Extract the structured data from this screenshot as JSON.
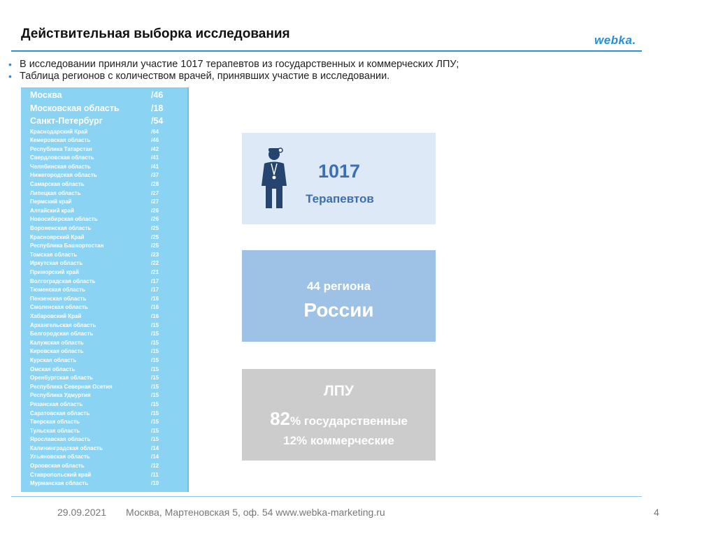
{
  "slide": {
    "title": "Действительная выборка исследования",
    "logo_text": "webka."
  },
  "bullets": [
    "В исследовании приняли участие 1017 терапевтов из государственных и коммерческих ЛПУ;",
    "Таблица регионов с количеством врачей, принявших участие в исследовании."
  ],
  "regions_big": [
    {
      "name": "Москва",
      "count": "/46"
    },
    {
      "name": "Московская область",
      "count": "/18"
    },
    {
      "name": "Санкт-Петербург",
      "count": "/54"
    }
  ],
  "regions_small": [
    {
      "name": "Краснодарский Край",
      "count": "/64"
    },
    {
      "name": "Кемеровская область",
      "count": "/46"
    },
    {
      "name": "Республика Татарстан",
      "count": "/42"
    },
    {
      "name": "Свердловская область",
      "count": "/41"
    },
    {
      "name": "Челябинская область",
      "count": "/41"
    },
    {
      "name": "Нижегородская область",
      "count": "/37"
    },
    {
      "name": "Самарская область",
      "count": "/28"
    },
    {
      "name": "Липецкая область",
      "count": "/27"
    },
    {
      "name": "Пермский край",
      "count": "/27"
    },
    {
      "name": "Алтайский край",
      "count": "/26"
    },
    {
      "name": "Новосибирская область",
      "count": "/26"
    },
    {
      "name": "Воронежская область",
      "count": "/25"
    },
    {
      "name": "Красноярский Край",
      "count": "/25"
    },
    {
      "name": "Республика Башкортостан",
      "count": "/25"
    },
    {
      "name": "Томская область",
      "count": "/23"
    },
    {
      "name": "Иркутская область",
      "count": "/22"
    },
    {
      "name": "Приморский край",
      "count": "/21"
    },
    {
      "name": "Волгоградская область",
      "count": "/17"
    },
    {
      "name": "Тюменская область",
      "count": "/17"
    },
    {
      "name": "Пензенская область",
      "count": "/16"
    },
    {
      "name": "Смоленская область",
      "count": "/16"
    },
    {
      "name": "Хабаровский Край",
      "count": "/16"
    },
    {
      "name": "Архангельская область",
      "count": "/15"
    },
    {
      "name": "Белгородская область",
      "count": "/15"
    },
    {
      "name": "Калужская область",
      "count": "/15"
    },
    {
      "name": "Кировская область",
      "count": "/15"
    },
    {
      "name": "Курская область",
      "count": "/15"
    },
    {
      "name": "Омская область",
      "count": "/15"
    },
    {
      "name": "Оренбургская область",
      "count": "/15"
    },
    {
      "name": "Республика Северная Осетия",
      "count": "/15"
    },
    {
      "name": "Республика Удмуртия",
      "count": "/15"
    },
    {
      "name": "Рязанская область",
      "count": "/15"
    },
    {
      "name": "Саратовская область",
      "count": "/15"
    },
    {
      "name": "Тверская область",
      "count": "/15"
    },
    {
      "name": "Тульская область",
      "count": "/15"
    },
    {
      "name": "Ярославская область",
      "count": "/15"
    },
    {
      "name": "Калининградская область",
      "count": "/14"
    },
    {
      "name": "Ульяновская область",
      "count": "/14"
    },
    {
      "name": "Орловская область",
      "count": "/12"
    },
    {
      "name": "Ставропольский край",
      "count": "/11"
    },
    {
      "name": "Мурманская область",
      "count": "/10"
    }
  ],
  "cards": {
    "therapists": {
      "number": "1017",
      "label": "Терапевтов",
      "icon": "doctor-icon"
    },
    "regions": {
      "line1": "44 региона",
      "line2": "России"
    },
    "lpu": {
      "title": "ЛПУ",
      "state_number": "82",
      "state_text": "% государственные",
      "commercial": "12% коммерческие"
    }
  },
  "footer": {
    "date": "29.09.2021",
    "address": "Москва, Мартеновская 5, оф. 54 www.webka-marketing.ru",
    "page": "4"
  },
  "colors": {
    "accent": "#2a8fd6",
    "region_panel": "#8bd3f3",
    "card_light": "#dde9f6",
    "card_mid": "#9ec1e6",
    "card_gray": "#cccccc",
    "card_text": "#3a6fb5"
  }
}
